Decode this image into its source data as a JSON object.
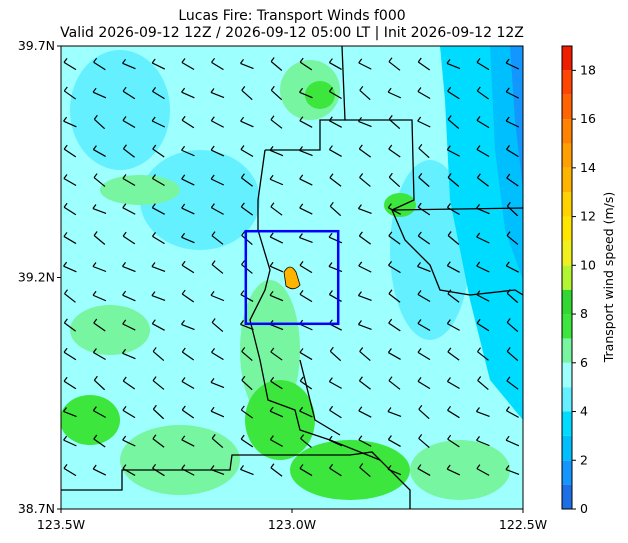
{
  "chart_data": {
    "type": "map",
    "title": "Lucas Fire: Transport Winds f000",
    "subtitle": "Valid 2026-09-12 12Z / 2026-09-12 05:00 LT | Init 2026-09-12 12Z",
    "xlim": [
      -123.5,
      -122.5
    ],
    "ylim": [
      38.7,
      39.7
    ],
    "xticks": [
      {
        "value": -123.5,
        "label": "123.5W"
      },
      {
        "value": -123.0,
        "label": "123.0W"
      },
      {
        "value": -122.5,
        "label": "122.5W"
      }
    ],
    "yticks": [
      {
        "value": 38.7,
        "label": "38.7N"
      },
      {
        "value": 39.2,
        "label": "39.2N"
      },
      {
        "value": 39.7,
        "label": "39.7N"
      }
    ],
    "box": {
      "color": "#0000ff",
      "xlim": [
        -123.1,
        -122.9
      ],
      "ylim": [
        39.1,
        39.3
      ]
    },
    "colorbar": {
      "label": "Transport wind speed (m/s)",
      "lim": [
        0,
        19
      ],
      "ticks": [
        0,
        2,
        4,
        6,
        8,
        10,
        12,
        14,
        16,
        18
      ],
      "colors": [
        "#1e6ee6",
        "#1496ff",
        "#00bfff",
        "#00dcff",
        "#64f0ff",
        "#9effff",
        "#78f5a0",
        "#3ce63c",
        "#32d732",
        "#b4f532",
        "#f0f01e",
        "#ffe600",
        "#ffd200",
        "#ffb400",
        "#ffa000",
        "#ff8200",
        "#ff6400",
        "#ff4600",
        "#f01e00"
      ]
    }
  }
}
